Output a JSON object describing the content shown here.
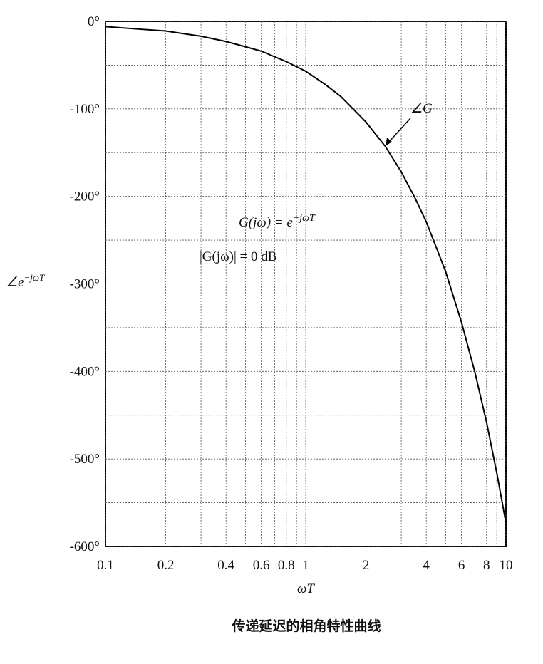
{
  "chart_data": {
    "type": "line",
    "caption": "传递延迟的相角特性曲线",
    "xlabel": "ωT",
    "ylabel": {
      "base": "∠e",
      "sup": "−jωT"
    },
    "annotations": {
      "formula": {
        "base": "G(jω) = e",
        "sup": "−jωT"
      },
      "magnitude": "|G(jω)| = 0 dB",
      "curve_label": "∠G"
    },
    "log_x": true,
    "grid": true,
    "xlim": [
      0.1,
      10
    ],
    "ylim": [
      -600,
      0
    ],
    "xticks": [
      0.1,
      0.2,
      0.4,
      0.6,
      0.8,
      1,
      2,
      4,
      6,
      8,
      10
    ],
    "xminorticks": [
      0.3,
      0.5,
      0.7,
      0.9,
      3,
      5,
      7,
      9
    ],
    "yticks": [
      {
        "value": 0,
        "label": "0°"
      },
      {
        "value": -100,
        "label": "-100°"
      },
      {
        "value": -200,
        "label": "-200°"
      },
      {
        "value": -300,
        "label": "-300°"
      },
      {
        "value": -400,
        "label": "-400°"
      },
      {
        "value": -500,
        "label": "-500°"
      },
      {
        "value": -600,
        "label": "-600°"
      }
    ],
    "yminorticks": [
      -50,
      -150,
      -250,
      -350,
      -450,
      -550
    ],
    "series": [
      {
        "name": "∠G",
        "color": "#000000",
        "x": [
          0.1,
          0.15,
          0.2,
          0.3,
          0.4,
          0.5,
          0.6,
          0.8,
          1,
          1.25,
          1.5,
          2,
          2.5,
          3,
          3.5,
          4,
          5,
          6,
          7,
          8,
          9,
          10
        ],
        "values": [
          -6,
          -9,
          -11,
          -17,
          -23,
          -29,
          -34,
          -46,
          -57,
          -72,
          -86,
          -115,
          -143,
          -172,
          -201,
          -229,
          -286,
          -344,
          -401,
          -458,
          -516,
          -573
        ]
      }
    ]
  }
}
